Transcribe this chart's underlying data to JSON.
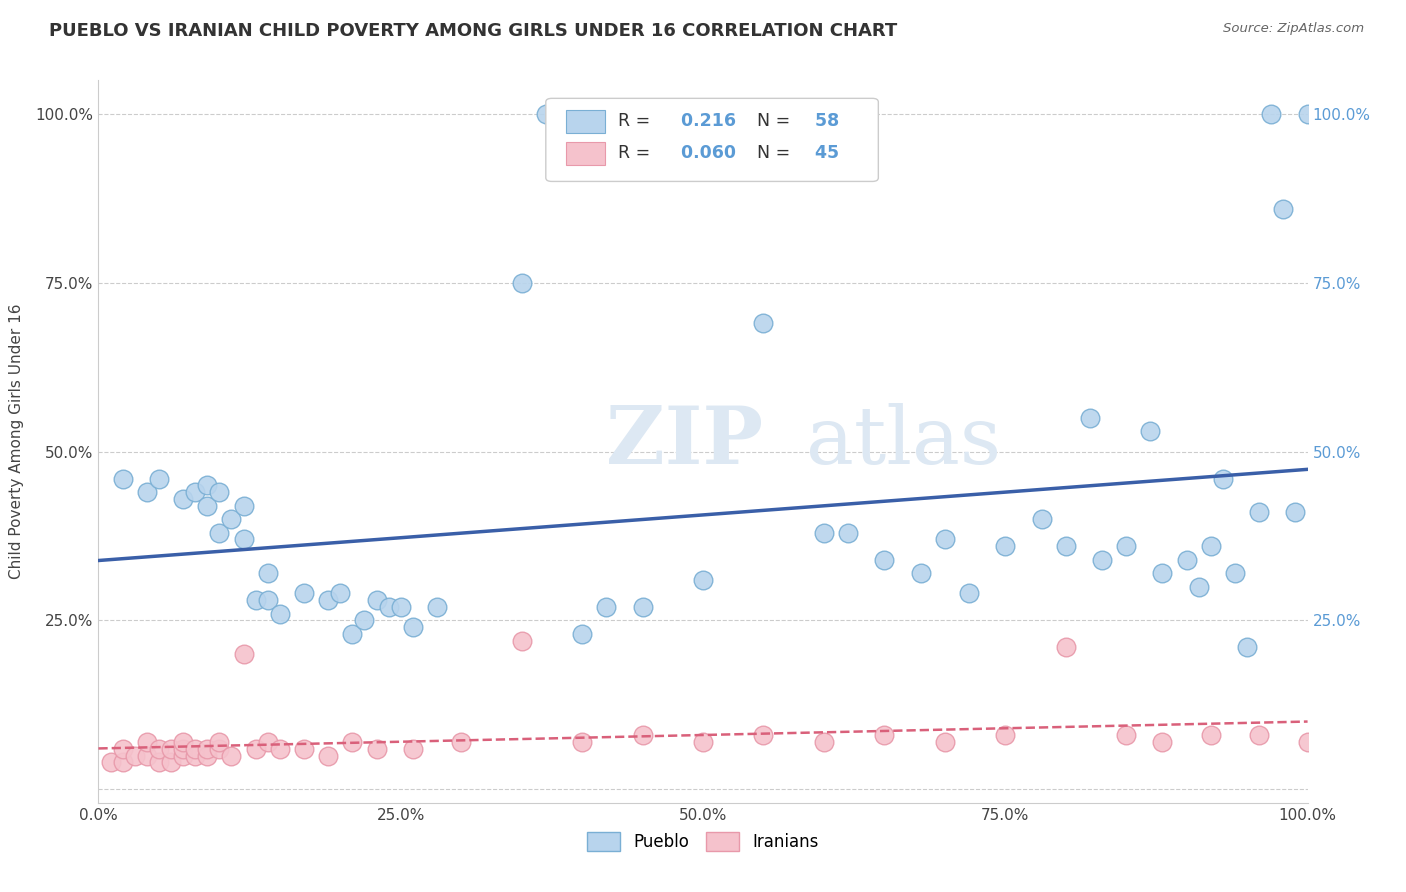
{
  "title": "PUEBLO VS IRANIAN CHILD POVERTY AMONG GIRLS UNDER 16 CORRELATION CHART",
  "source": "Source: ZipAtlas.com",
  "ylabel": "Child Poverty Among Girls Under 16",
  "xlim": [
    0,
    1
  ],
  "ylim": [
    -0.02,
    1.05
  ],
  "pueblo_R": 0.216,
  "pueblo_N": 58,
  "iranian_R": 0.06,
  "iranian_N": 45,
  "pueblo_color": "#b8d4ed",
  "pueblo_edge": "#7aafd4",
  "iranian_color": "#f5c2cc",
  "iranian_edge": "#e899aa",
  "pueblo_line_color": "#3a5fa8",
  "iranian_line_color": "#d9607a",
  "right_tick_color": "#5b9bd5",
  "background_color": "#ffffff",
  "watermark_color": "#dde8f3",
  "pueblo_x": [
    0.02,
    0.04,
    0.05,
    0.07,
    0.08,
    0.09,
    0.09,
    0.1,
    0.1,
    0.11,
    0.12,
    0.12,
    0.13,
    0.14,
    0.14,
    0.15,
    0.17,
    0.19,
    0.2,
    0.21,
    0.22,
    0.23,
    0.24,
    0.25,
    0.26,
    0.28,
    0.35,
    0.37,
    0.4,
    0.42,
    0.45,
    0.5,
    0.55,
    0.6,
    0.62,
    0.65,
    0.68,
    0.7,
    0.72,
    0.75,
    0.78,
    0.8,
    0.82,
    0.83,
    0.85,
    0.87,
    0.88,
    0.9,
    0.91,
    0.92,
    0.93,
    0.94,
    0.95,
    0.96,
    0.97,
    0.98,
    0.99,
    1.0
  ],
  "pueblo_y": [
    0.46,
    0.44,
    0.46,
    0.43,
    0.44,
    0.42,
    0.45,
    0.38,
    0.44,
    0.4,
    0.42,
    0.37,
    0.28,
    0.32,
    0.28,
    0.26,
    0.29,
    0.28,
    0.29,
    0.23,
    0.25,
    0.28,
    0.27,
    0.27,
    0.24,
    0.27,
    0.75,
    1.0,
    0.23,
    0.27,
    0.27,
    0.31,
    0.69,
    0.38,
    0.38,
    0.34,
    0.32,
    0.37,
    0.29,
    0.36,
    0.4,
    0.36,
    0.55,
    0.34,
    0.36,
    0.53,
    0.32,
    0.34,
    0.3,
    0.36,
    0.46,
    0.32,
    0.21,
    0.41,
    1.0,
    0.86,
    0.41,
    1.0
  ],
  "iranian_x": [
    0.01,
    0.02,
    0.02,
    0.03,
    0.04,
    0.04,
    0.05,
    0.05,
    0.06,
    0.06,
    0.07,
    0.07,
    0.07,
    0.08,
    0.08,
    0.09,
    0.09,
    0.1,
    0.1,
    0.11,
    0.12,
    0.13,
    0.14,
    0.15,
    0.17,
    0.19,
    0.21,
    0.23,
    0.26,
    0.3,
    0.35,
    0.4,
    0.45,
    0.5,
    0.55,
    0.6,
    0.65,
    0.7,
    0.75,
    0.8,
    0.85,
    0.88,
    0.92,
    0.96,
    1.0
  ],
  "iranian_y": [
    0.04,
    0.04,
    0.06,
    0.05,
    0.05,
    0.07,
    0.04,
    0.06,
    0.04,
    0.06,
    0.05,
    0.06,
    0.07,
    0.05,
    0.06,
    0.05,
    0.06,
    0.06,
    0.07,
    0.05,
    0.2,
    0.06,
    0.07,
    0.06,
    0.06,
    0.05,
    0.07,
    0.06,
    0.06,
    0.07,
    0.22,
    0.07,
    0.08,
    0.07,
    0.08,
    0.07,
    0.08,
    0.07,
    0.08,
    0.21,
    0.08,
    0.07,
    0.08,
    0.08,
    0.07
  ]
}
